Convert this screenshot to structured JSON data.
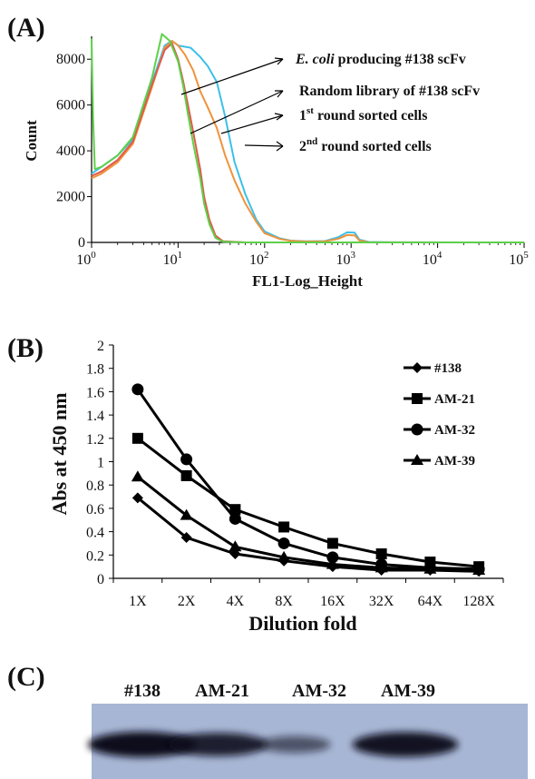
{
  "figure": {
    "panel_a_label": "(A)",
    "panel_b_label": "(B)",
    "panel_c_label": "(C)"
  },
  "chart_data": [
    {
      "type": "line",
      "panel": "A",
      "xlabel": "FL1-Log_Height",
      "ylabel": "Count",
      "xscale": "log",
      "xlim": [
        1,
        100000
      ],
      "ylim": [
        0,
        9000
      ],
      "xtick_bases": [
        "10",
        "10",
        "10",
        "10",
        "10",
        "10"
      ],
      "xtick_exponents": [
        "0",
        "1",
        "2",
        "3",
        "4",
        "5"
      ],
      "yticks": [
        "0",
        "2000",
        "4000",
        "6000",
        "8000"
      ],
      "ytick_values": [
        0,
        2000,
        4000,
        6000,
        8000
      ],
      "series": [
        {
          "color": "#3cc0e8",
          "points": [
            [
              1,
              3000
            ],
            [
              1.3,
              3300
            ],
            [
              2,
              3800
            ],
            [
              3,
              4500
            ],
            [
              5,
              7000
            ],
            [
              7,
              8600
            ],
            [
              8.5,
              8800
            ],
            [
              10,
              8600
            ],
            [
              14,
              8500
            ],
            [
              18,
              8100
            ],
            [
              22,
              7700
            ],
            [
              28,
              7000
            ],
            [
              35,
              5500
            ],
            [
              45,
              3500
            ],
            [
              60,
              2100
            ],
            [
              80,
              1000
            ],
            [
              100,
              480
            ],
            [
              150,
              180
            ],
            [
              200,
              80
            ],
            [
              300,
              50
            ],
            [
              500,
              60
            ],
            [
              700,
              220
            ],
            [
              900,
              440
            ],
            [
              1100,
              430
            ],
            [
              1250,
              120
            ],
            [
              1600,
              20
            ],
            [
              3000,
              5
            ],
            [
              100000,
              0
            ]
          ]
        },
        {
          "color": "#f0923a",
          "points": [
            [
              1,
              2800
            ],
            [
              1.3,
              3000
            ],
            [
              2,
              3500
            ],
            [
              3,
              4300
            ],
            [
              5,
              6800
            ],
            [
              7,
              8500
            ],
            [
              8.5,
              8800
            ],
            [
              10,
              8600
            ],
            [
              12,
              8200
            ],
            [
              15,
              7500
            ],
            [
              18,
              6600
            ],
            [
              22,
              5900
            ],
            [
              28,
              5000
            ],
            [
              35,
              3800
            ],
            [
              45,
              2700
            ],
            [
              60,
              1700
            ],
            [
              80,
              900
            ],
            [
              100,
              400
            ],
            [
              150,
              150
            ],
            [
              200,
              70
            ],
            [
              300,
              40
            ],
            [
              500,
              50
            ],
            [
              700,
              150
            ],
            [
              900,
              320
            ],
            [
              1100,
              310
            ],
            [
              1250,
              80
            ],
            [
              1600,
              10
            ],
            [
              3000,
              5
            ],
            [
              100000,
              0
            ]
          ]
        },
        {
          "color": "#e05a4a",
          "points": [
            [
              1,
              2900
            ],
            [
              1.3,
              3100
            ],
            [
              2,
              3600
            ],
            [
              3,
              4400
            ],
            [
              5,
              6900
            ],
            [
              7,
              8400
            ],
            [
              8.5,
              8700
            ],
            [
              10,
              8000
            ],
            [
              11.5,
              7000
            ],
            [
              13,
              6000
            ],
            [
              15,
              4800
            ],
            [
              18,
              3200
            ],
            [
              20,
              2000
            ],
            [
              23,
              1000
            ],
            [
              27,
              300
            ],
            [
              33,
              50
            ],
            [
              60,
              0
            ],
            [
              100000,
              0
            ]
          ]
        },
        {
          "color": "#5ed04a",
          "points": [
            [
              1,
              8900
            ],
            [
              1.04,
              5500
            ],
            [
              1.09,
              3200
            ],
            [
              1.3,
              3300
            ],
            [
              2,
              3800
            ],
            [
              3,
              4600
            ],
            [
              5,
              7200
            ],
            [
              6.5,
              9100
            ],
            [
              8,
              8800
            ],
            [
              10,
              7900
            ],
            [
              11.5,
              6800
            ],
            [
              13,
              5600
            ],
            [
              15,
              4300
            ],
            [
              18,
              2800
            ],
            [
              20,
              1700
            ],
            [
              23,
              800
            ],
            [
              27,
              200
            ],
            [
              33,
              30
            ],
            [
              60,
              0
            ],
            [
              100000,
              0
            ]
          ]
        }
      ],
      "annotations": [
        {
          "em": "E. coli",
          "text": " producing #138 scFv"
        },
        {
          "text": "Random library of #138 scFv"
        },
        {
          "text": "1",
          "sup": "st",
          "rest": " round sorted cells"
        },
        {
          "text": "2",
          "sup": "nd",
          "rest": " round sorted cells"
        }
      ]
    },
    {
      "type": "line",
      "panel": "B",
      "categories": [
        "1X",
        "2X",
        "4X",
        "8X",
        "16X",
        "32X",
        "64X",
        "128X"
      ],
      "xlabel": "Dilution fold",
      "ylabel": "Abs at 450 nm",
      "ylim": [
        0,
        2
      ],
      "yticks": [
        "0",
        "0.2",
        "0.4",
        "0.6",
        "0.8",
        "1",
        "1.2",
        "1.4",
        "1.6",
        "1.8",
        "2"
      ],
      "ytick_values": [
        0,
        0.2,
        0.4,
        0.6,
        0.8,
        1.0,
        1.2,
        1.4,
        1.6,
        1.8,
        2.0
      ],
      "legend_position": "top-right",
      "series": [
        {
          "name": "#138",
          "marker": "diamond",
          "values": [
            0.69,
            0.35,
            0.21,
            0.15,
            0.1,
            0.07,
            0.07,
            0.06
          ]
        },
        {
          "name": "AM-21",
          "marker": "square",
          "values": [
            1.2,
            0.88,
            0.59,
            0.44,
            0.3,
            0.21,
            0.14,
            0.1
          ]
        },
        {
          "name": "AM-32",
          "marker": "circle",
          "values": [
            1.62,
            1.02,
            0.51,
            0.3,
            0.18,
            0.12,
            0.09,
            0.08
          ]
        },
        {
          "name": "AM-39",
          "marker": "triangle",
          "values": [
            0.87,
            0.54,
            0.27,
            0.18,
            0.12,
            0.09,
            0.08,
            0.07
          ]
        }
      ]
    }
  ],
  "blot": {
    "lanes": [
      "#138",
      "AM-21",
      "AM-32",
      "AM-39"
    ],
    "band_intensity": [
      1.0,
      0.85,
      0.4,
      0.95
    ],
    "background_color": "#a7b6d4",
    "band_color": "#0d0f1c"
  }
}
